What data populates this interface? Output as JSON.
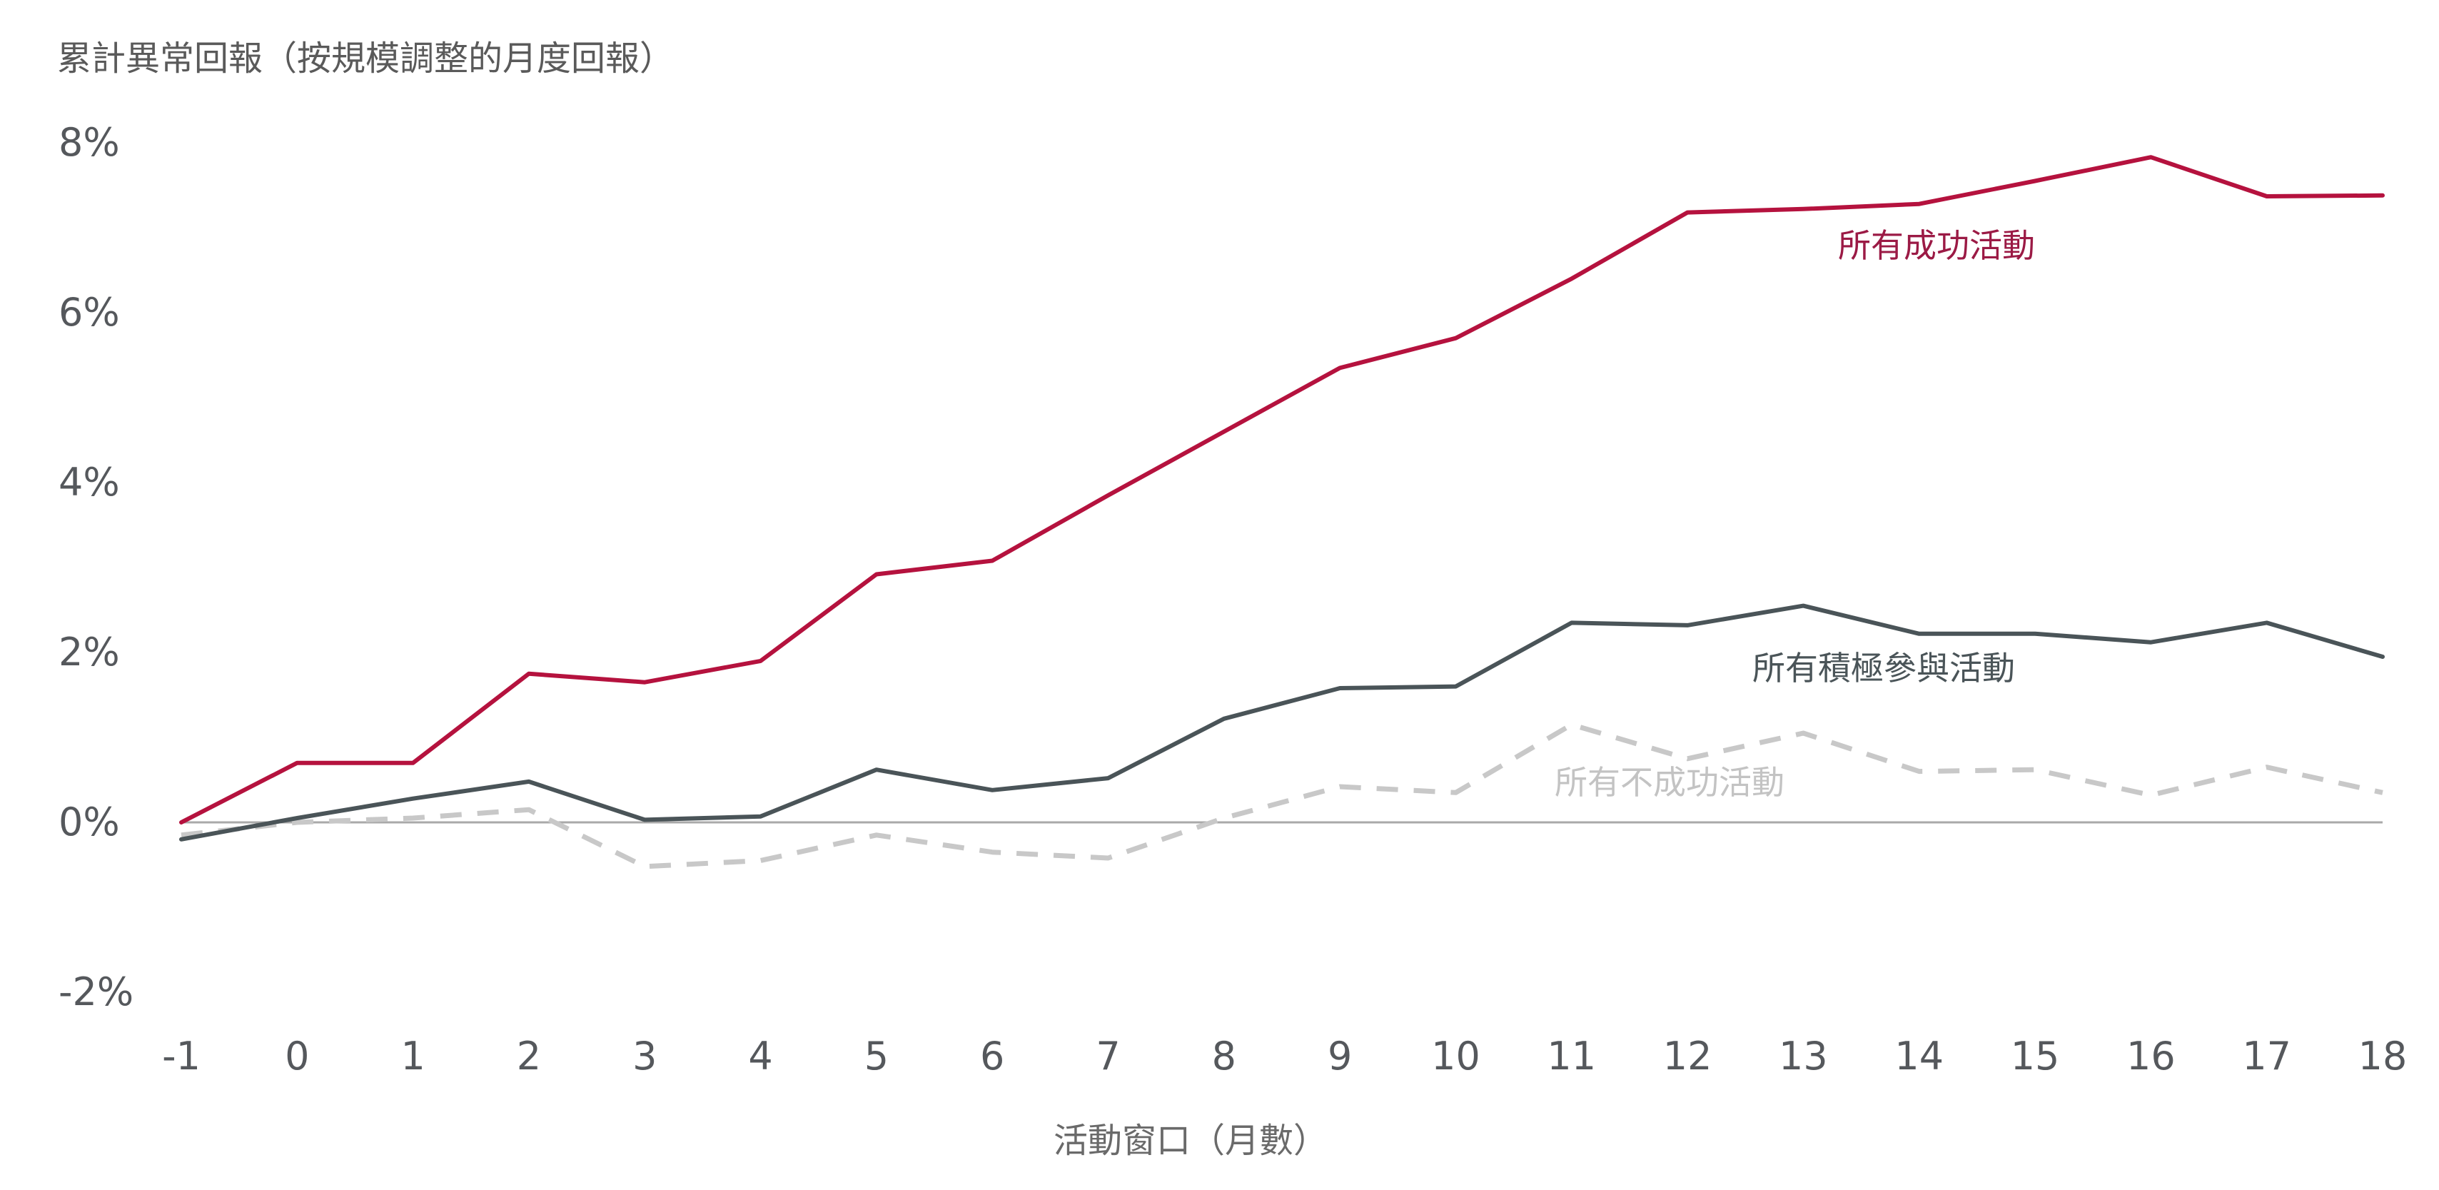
{
  "chart_data": {
    "type": "line",
    "title": "",
    "ylabel": "累計異常回報（按規模調整的月度回報）",
    "xlabel": "活動窗口（月數）",
    "x": [
      -1,
      0,
      1,
      2,
      3,
      4,
      5,
      6,
      7,
      8,
      9,
      10,
      11,
      12,
      13,
      14,
      15,
      16,
      17,
      18
    ],
    "ylim": [
      -2,
      8
    ],
    "yticks": [
      8,
      6,
      4,
      2,
      0,
      -2
    ],
    "ytick_labels": [
      "8%",
      "6%",
      "4%",
      "2%",
      "0%",
      "-2%"
    ],
    "xtick_labels": [
      "-1",
      "0",
      "1",
      "2",
      "3",
      "4",
      "5",
      "6",
      "7",
      "8",
      "9",
      "10",
      "11",
      "12",
      "13",
      "14",
      "15",
      "16",
      "17",
      "18"
    ],
    "grid": false,
    "zero_line": true,
    "series": [
      {
        "name": "所有成功活動",
        "color": "#b5123e",
        "dash": "solid",
        "values": [
          0.0,
          0.7,
          0.7,
          1.75,
          1.65,
          1.9,
          2.92,
          3.08,
          3.85,
          4.6,
          5.35,
          5.7,
          6.4,
          7.18,
          7.22,
          7.28,
          7.55,
          7.83,
          7.37,
          7.38
        ]
      },
      {
        "name": "所有積極參與活動",
        "color": "#4a5458",
        "dash": "solid",
        "values": [
          -0.2,
          0.05,
          0.28,
          0.48,
          0.03,
          0.07,
          0.62,
          0.38,
          0.52,
          1.22,
          1.58,
          1.6,
          2.35,
          2.32,
          2.55,
          2.22,
          2.22,
          2.12,
          2.35,
          1.95
        ]
      },
      {
        "name": "所有不成功活動",
        "color": "#c8c8c8",
        "dash": "dashed",
        "values": [
          -0.15,
          0.0,
          0.05,
          0.15,
          -0.52,
          -0.45,
          -0.15,
          -0.35,
          -0.42,
          0.05,
          0.42,
          0.35,
          1.15,
          0.75,
          1.05,
          0.6,
          0.62,
          0.32,
          0.65,
          0.35
        ]
      }
    ]
  }
}
